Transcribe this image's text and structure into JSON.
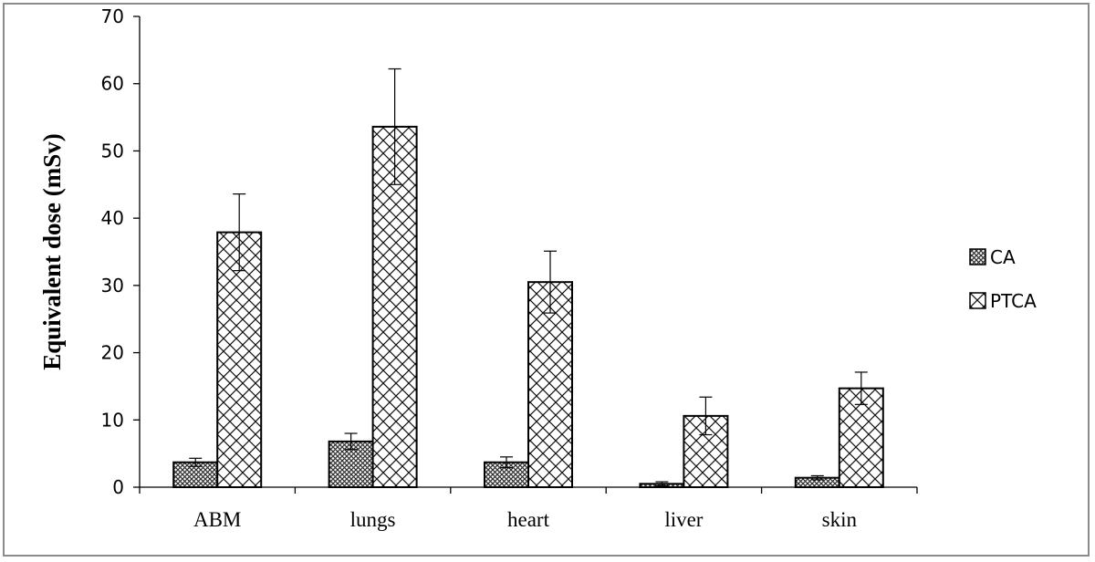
{
  "chart_data": {
    "type": "bar",
    "title": "",
    "xlabel": "",
    "ylabel": "Equivalent dose (mSv)",
    "categories": [
      "ABM",
      "lungs",
      "heart",
      "liver",
      "skin"
    ],
    "series": [
      {
        "name": "CA",
        "values": [
          3.7,
          6.8,
          3.7,
          0.5,
          1.4
        ],
        "errors": [
          0.6,
          1.2,
          0.8,
          0.3,
          0.3
        ],
        "pattern": "crosshatch"
      },
      {
        "name": "PTCA",
        "values": [
          37.9,
          53.6,
          30.5,
          10.6,
          14.7
        ],
        "errors": [
          5.7,
          8.6,
          4.6,
          2.8,
          2.4
        ],
        "pattern": "diagonal-hatch"
      }
    ],
    "ylim": [
      0,
      70
    ],
    "yticks": [
      0,
      10,
      20,
      30,
      40,
      50,
      60,
      70
    ],
    "grid": false,
    "error_bars": true,
    "legend_position": "right"
  }
}
